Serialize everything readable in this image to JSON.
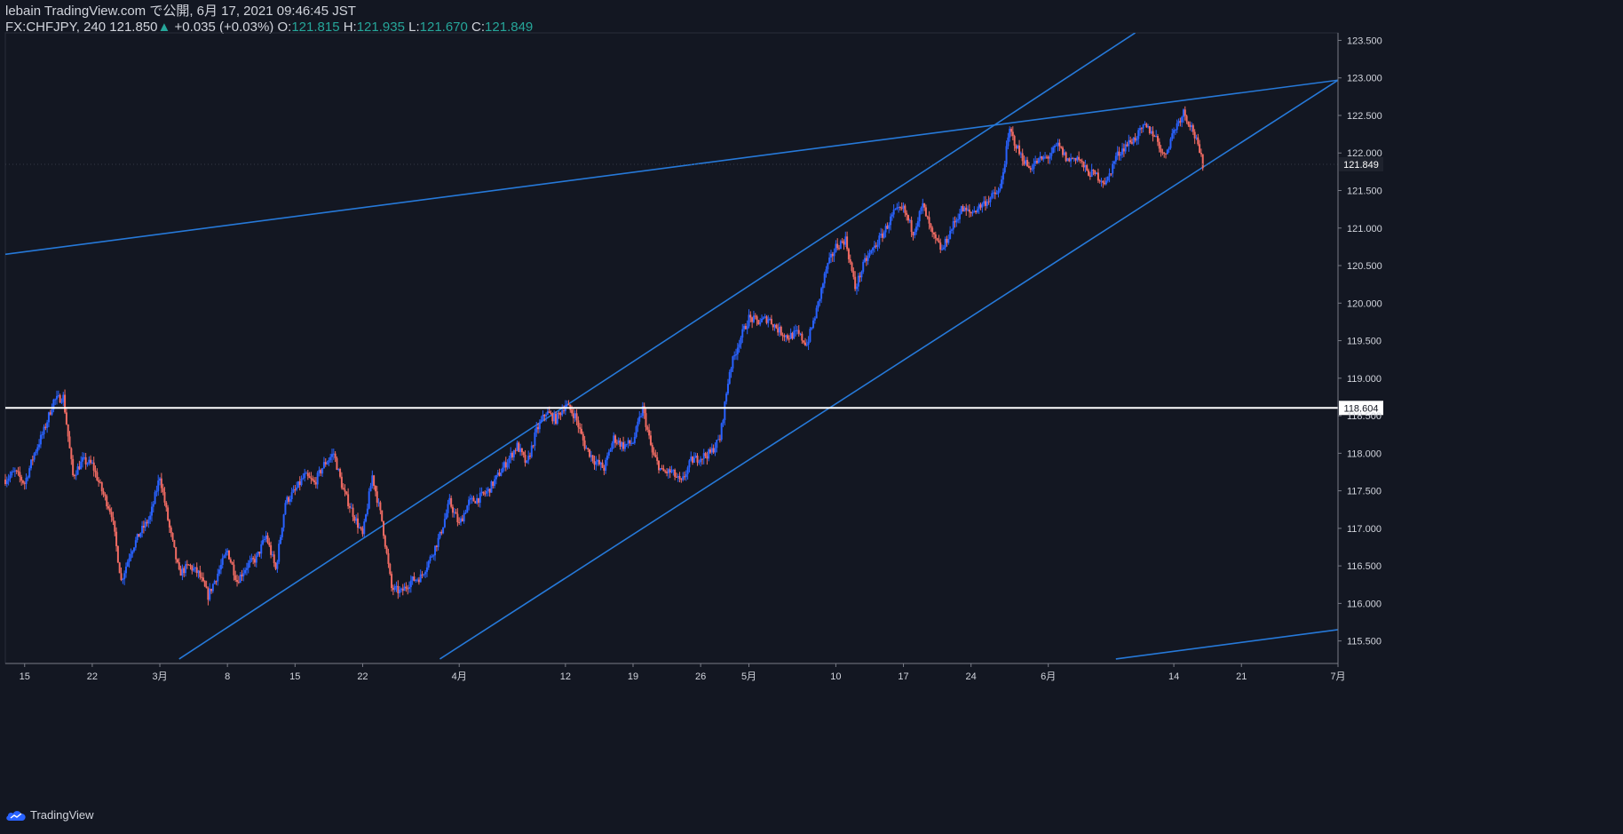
{
  "header": {
    "publish_line": "lebain TradingView.com で公開, 6月 17, 2021 09:46:45 JST",
    "symbol": "FX:CHFJPY, 240",
    "last": "121.850",
    "change_arrow": "▲",
    "change": "+0.035 (+0.03%)",
    "o_label": "O:",
    "o_value": "121.815",
    "h_label": "H:",
    "h_value": "121.935",
    "l_label": "L:",
    "l_value": "121.670",
    "c_label": "C:",
    "c_value": "121.849"
  },
  "footer": {
    "brand": "TradingView"
  },
  "colors": {
    "background": "#131722",
    "up": "#2962ff",
    "down": "#f06b63",
    "trendline": "#2679d9",
    "horizontal_line": "#ffffff",
    "text": "#d1d4dc",
    "value_green": "#26a69a"
  },
  "chart_data": {
    "type": "candlestick",
    "symbol": "FX:CHFJPY",
    "interval": "240",
    "x_ticks": [
      "15",
      "22",
      "3月",
      "8",
      "15",
      "22",
      "4月",
      "12",
      "19",
      "26",
      "5月",
      "10",
      "17",
      "24",
      "6月",
      "14",
      "21",
      "7月"
    ],
    "y_ticks": [
      115.5,
      116.0,
      116.5,
      117.0,
      117.5,
      118.0,
      118.5,
      119.0,
      119.5,
      120.0,
      120.5,
      121.0,
      121.5,
      122.0,
      122.5,
      123.0,
      123.5
    ],
    "y_tick_labels": [
      "115.500",
      "116.000",
      "116.500",
      "117.000",
      "117.500",
      "118.000",
      "118.500",
      "119.000",
      "119.500",
      "120.000",
      "120.500",
      "121.000",
      "121.500",
      "122.000",
      "122.500",
      "123.000",
      "123.500"
    ],
    "ylim": [
      115.2,
      123.6
    ],
    "x_range_dates": [
      "2021-02-13",
      "2021-07-01"
    ],
    "horizontal_level": 118.604,
    "horizontal_level_label": "118.604",
    "last_price": 121.849,
    "last_price_label": "121.849",
    "trend_lines": [
      {
        "start": [
          "2021-02-13",
          120.65
        ],
        "end": [
          "2021-07-01",
          122.97
        ]
      },
      {
        "start": [
          "2021-03-03",
          115.26
        ],
        "end": [
          "2021-06-10",
          123.6
        ]
      },
      {
        "start": [
          "2021-03-30",
          115.26
        ],
        "end": [
          "2021-07-01",
          122.97
        ]
      },
      {
        "start": [
          "2021-06-08",
          115.26
        ],
        "end": [
          "2021-07-01",
          115.65
        ]
      }
    ],
    "price_path": [
      [
        "2021-02-13",
        117.65
      ],
      [
        "2021-02-14",
        117.75
      ],
      [
        "2021-02-15",
        117.6
      ],
      [
        "2021-02-16",
        118.0
      ],
      [
        "2021-02-17",
        118.3
      ],
      [
        "2021-02-18",
        118.7
      ],
      [
        "2021-02-19",
        118.75
      ],
      [
        "2021-02-20",
        117.7
      ],
      [
        "2021-02-21",
        117.9
      ],
      [
        "2021-02-22",
        117.85
      ],
      [
        "2021-02-23",
        117.5
      ],
      [
        "2021-02-24",
        117.2
      ],
      [
        "2021-02-25",
        116.3
      ],
      [
        "2021-02-26",
        116.7
      ],
      [
        "2021-02-27",
        116.95
      ],
      [
        "2021-02-28",
        117.15
      ],
      [
        "2021-03-01",
        117.7
      ],
      [
        "2021-03-02",
        117.0
      ],
      [
        "2021-03-03",
        116.4
      ],
      [
        "2021-03-04",
        116.5
      ],
      [
        "2021-03-05",
        116.4
      ],
      [
        "2021-03-06",
        116.1
      ],
      [
        "2021-03-08",
        116.7
      ],
      [
        "2021-03-09",
        116.3
      ],
      [
        "2021-03-10",
        116.5
      ],
      [
        "2021-03-11",
        116.6
      ],
      [
        "2021-03-12",
        116.9
      ],
      [
        "2021-03-13",
        116.45
      ],
      [
        "2021-03-14",
        117.35
      ],
      [
        "2021-03-15",
        117.5
      ],
      [
        "2021-03-16",
        117.7
      ],
      [
        "2021-03-17",
        117.6
      ],
      [
        "2021-03-18",
        117.85
      ],
      [
        "2021-03-19",
        118.0
      ],
      [
        "2021-03-20",
        117.5
      ],
      [
        "2021-03-21",
        117.2
      ],
      [
        "2021-03-22",
        116.9
      ],
      [
        "2021-03-23",
        117.7
      ],
      [
        "2021-03-24",
        117.1
      ],
      [
        "2021-03-25",
        116.2
      ],
      [
        "2021-03-26",
        116.15
      ],
      [
        "2021-03-27",
        116.3
      ],
      [
        "2021-03-28",
        116.35
      ],
      [
        "2021-03-29",
        116.6
      ],
      [
        "2021-03-30",
        116.9
      ],
      [
        "2021-03-31",
        117.35
      ],
      [
        "2021-04-01",
        117.05
      ],
      [
        "2021-04-02",
        117.35
      ],
      [
        "2021-04-03",
        117.4
      ],
      [
        "2021-04-04",
        117.5
      ],
      [
        "2021-04-05",
        117.7
      ],
      [
        "2021-04-06",
        117.9
      ],
      [
        "2021-04-07",
        118.1
      ],
      [
        "2021-04-08",
        117.85
      ],
      [
        "2021-04-09",
        118.3
      ],
      [
        "2021-04-10",
        118.55
      ],
      [
        "2021-04-11",
        118.45
      ],
      [
        "2021-04-12",
        118.65
      ],
      [
        "2021-04-13",
        118.5
      ],
      [
        "2021-04-14",
        118.1
      ],
      [
        "2021-04-15",
        117.9
      ],
      [
        "2021-04-16",
        117.8
      ],
      [
        "2021-04-17",
        118.2
      ],
      [
        "2021-04-18",
        118.1
      ],
      [
        "2021-04-19",
        118.15
      ],
      [
        "2021-04-20",
        118.6
      ],
      [
        "2021-04-21",
        118.0
      ],
      [
        "2021-04-22",
        117.75
      ],
      [
        "2021-04-23",
        117.75
      ],
      [
        "2021-04-24",
        117.6
      ],
      [
        "2021-04-25",
        117.9
      ],
      [
        "2021-04-26",
        117.95
      ],
      [
        "2021-04-27",
        118.0
      ],
      [
        "2021-04-28",
        118.2
      ],
      [
        "2021-04-29",
        119.1
      ],
      [
        "2021-04-30",
        119.5
      ],
      [
        "2021-05-01",
        119.8
      ],
      [
        "2021-05-02",
        119.75
      ],
      [
        "2021-05-03",
        119.8
      ],
      [
        "2021-05-04",
        119.65
      ],
      [
        "2021-05-05",
        119.55
      ],
      [
        "2021-05-06",
        119.6
      ],
      [
        "2021-05-07",
        119.45
      ],
      [
        "2021-05-08",
        119.9
      ],
      [
        "2021-05-09",
        120.45
      ],
      [
        "2021-05-10",
        120.75
      ],
      [
        "2021-05-11",
        120.85
      ],
      [
        "2021-05-12",
        120.2
      ],
      [
        "2021-05-13",
        120.55
      ],
      [
        "2021-05-14",
        120.75
      ],
      [
        "2021-05-15",
        120.95
      ],
      [
        "2021-05-16",
        121.2
      ],
      [
        "2021-05-17",
        121.25
      ],
      [
        "2021-05-18",
        120.95
      ],
      [
        "2021-05-19",
        121.3
      ],
      [
        "2021-05-20",
        120.9
      ],
      [
        "2021-05-21",
        120.7
      ],
      [
        "2021-05-22",
        121.0
      ],
      [
        "2021-05-23",
        121.25
      ],
      [
        "2021-05-24",
        121.2
      ],
      [
        "2021-05-25",
        121.3
      ],
      [
        "2021-05-26",
        121.4
      ],
      [
        "2021-05-27",
        121.5
      ],
      [
        "2021-05-28",
        122.3
      ],
      [
        "2021-05-29",
        122.0
      ],
      [
        "2021-05-30",
        121.8
      ],
      [
        "2021-05-31",
        121.9
      ],
      [
        "2021-06-01",
        121.95
      ],
      [
        "2021-06-02",
        122.1
      ],
      [
        "2021-06-03",
        121.9
      ],
      [
        "2021-06-04",
        121.95
      ],
      [
        "2021-06-05",
        121.75
      ],
      [
        "2021-06-06",
        121.7
      ],
      [
        "2021-06-07",
        121.6
      ],
      [
        "2021-06-08",
        121.95
      ],
      [
        "2021-06-09",
        122.1
      ],
      [
        "2021-06-10",
        122.2
      ],
      [
        "2021-06-11",
        122.35
      ],
      [
        "2021-06-12",
        122.25
      ],
      [
        "2021-06-13",
        121.95
      ],
      [
        "2021-06-14",
        122.3
      ],
      [
        "2021-06-15",
        122.55
      ],
      [
        "2021-06-16",
        122.3
      ],
      [
        "2021-06-17",
        121.85
      ]
    ]
  }
}
